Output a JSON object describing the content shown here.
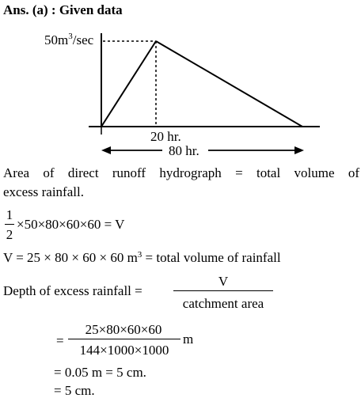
{
  "heading": "Ans. (a) : Given data",
  "diagram": {
    "peak_label": "50m",
    "peak_label_exp": "3",
    "peak_label_tail": "/sec",
    "peak_time_label": "20 hr.",
    "base_time_label": "80 hr."
  },
  "text": {
    "line1": "Area of direct runoff hydrograph = total volume of",
    "line2": "excess rainfall.",
    "eq1_num": "1",
    "eq1_den": "2",
    "eq1_rest": "×50×80×60×60 = V",
    "eq2_main": "V = 25 × 80 × 60 × 60 m",
    "eq2_exp": "3",
    "eq2_tail": " = total volume of rainfall",
    "eq3_label": "Depth of excess rainfall = ",
    "eq3_num": "V",
    "eq3_den": "catchment area",
    "eq4_eq": "=",
    "eq4_num": "25×80×60×60",
    "eq4_den": "144×1000×1000",
    "eq4_unit": "m",
    "eq5": "= 0.05 m = 5 cm.",
    "eq6": "= 5 cm."
  }
}
